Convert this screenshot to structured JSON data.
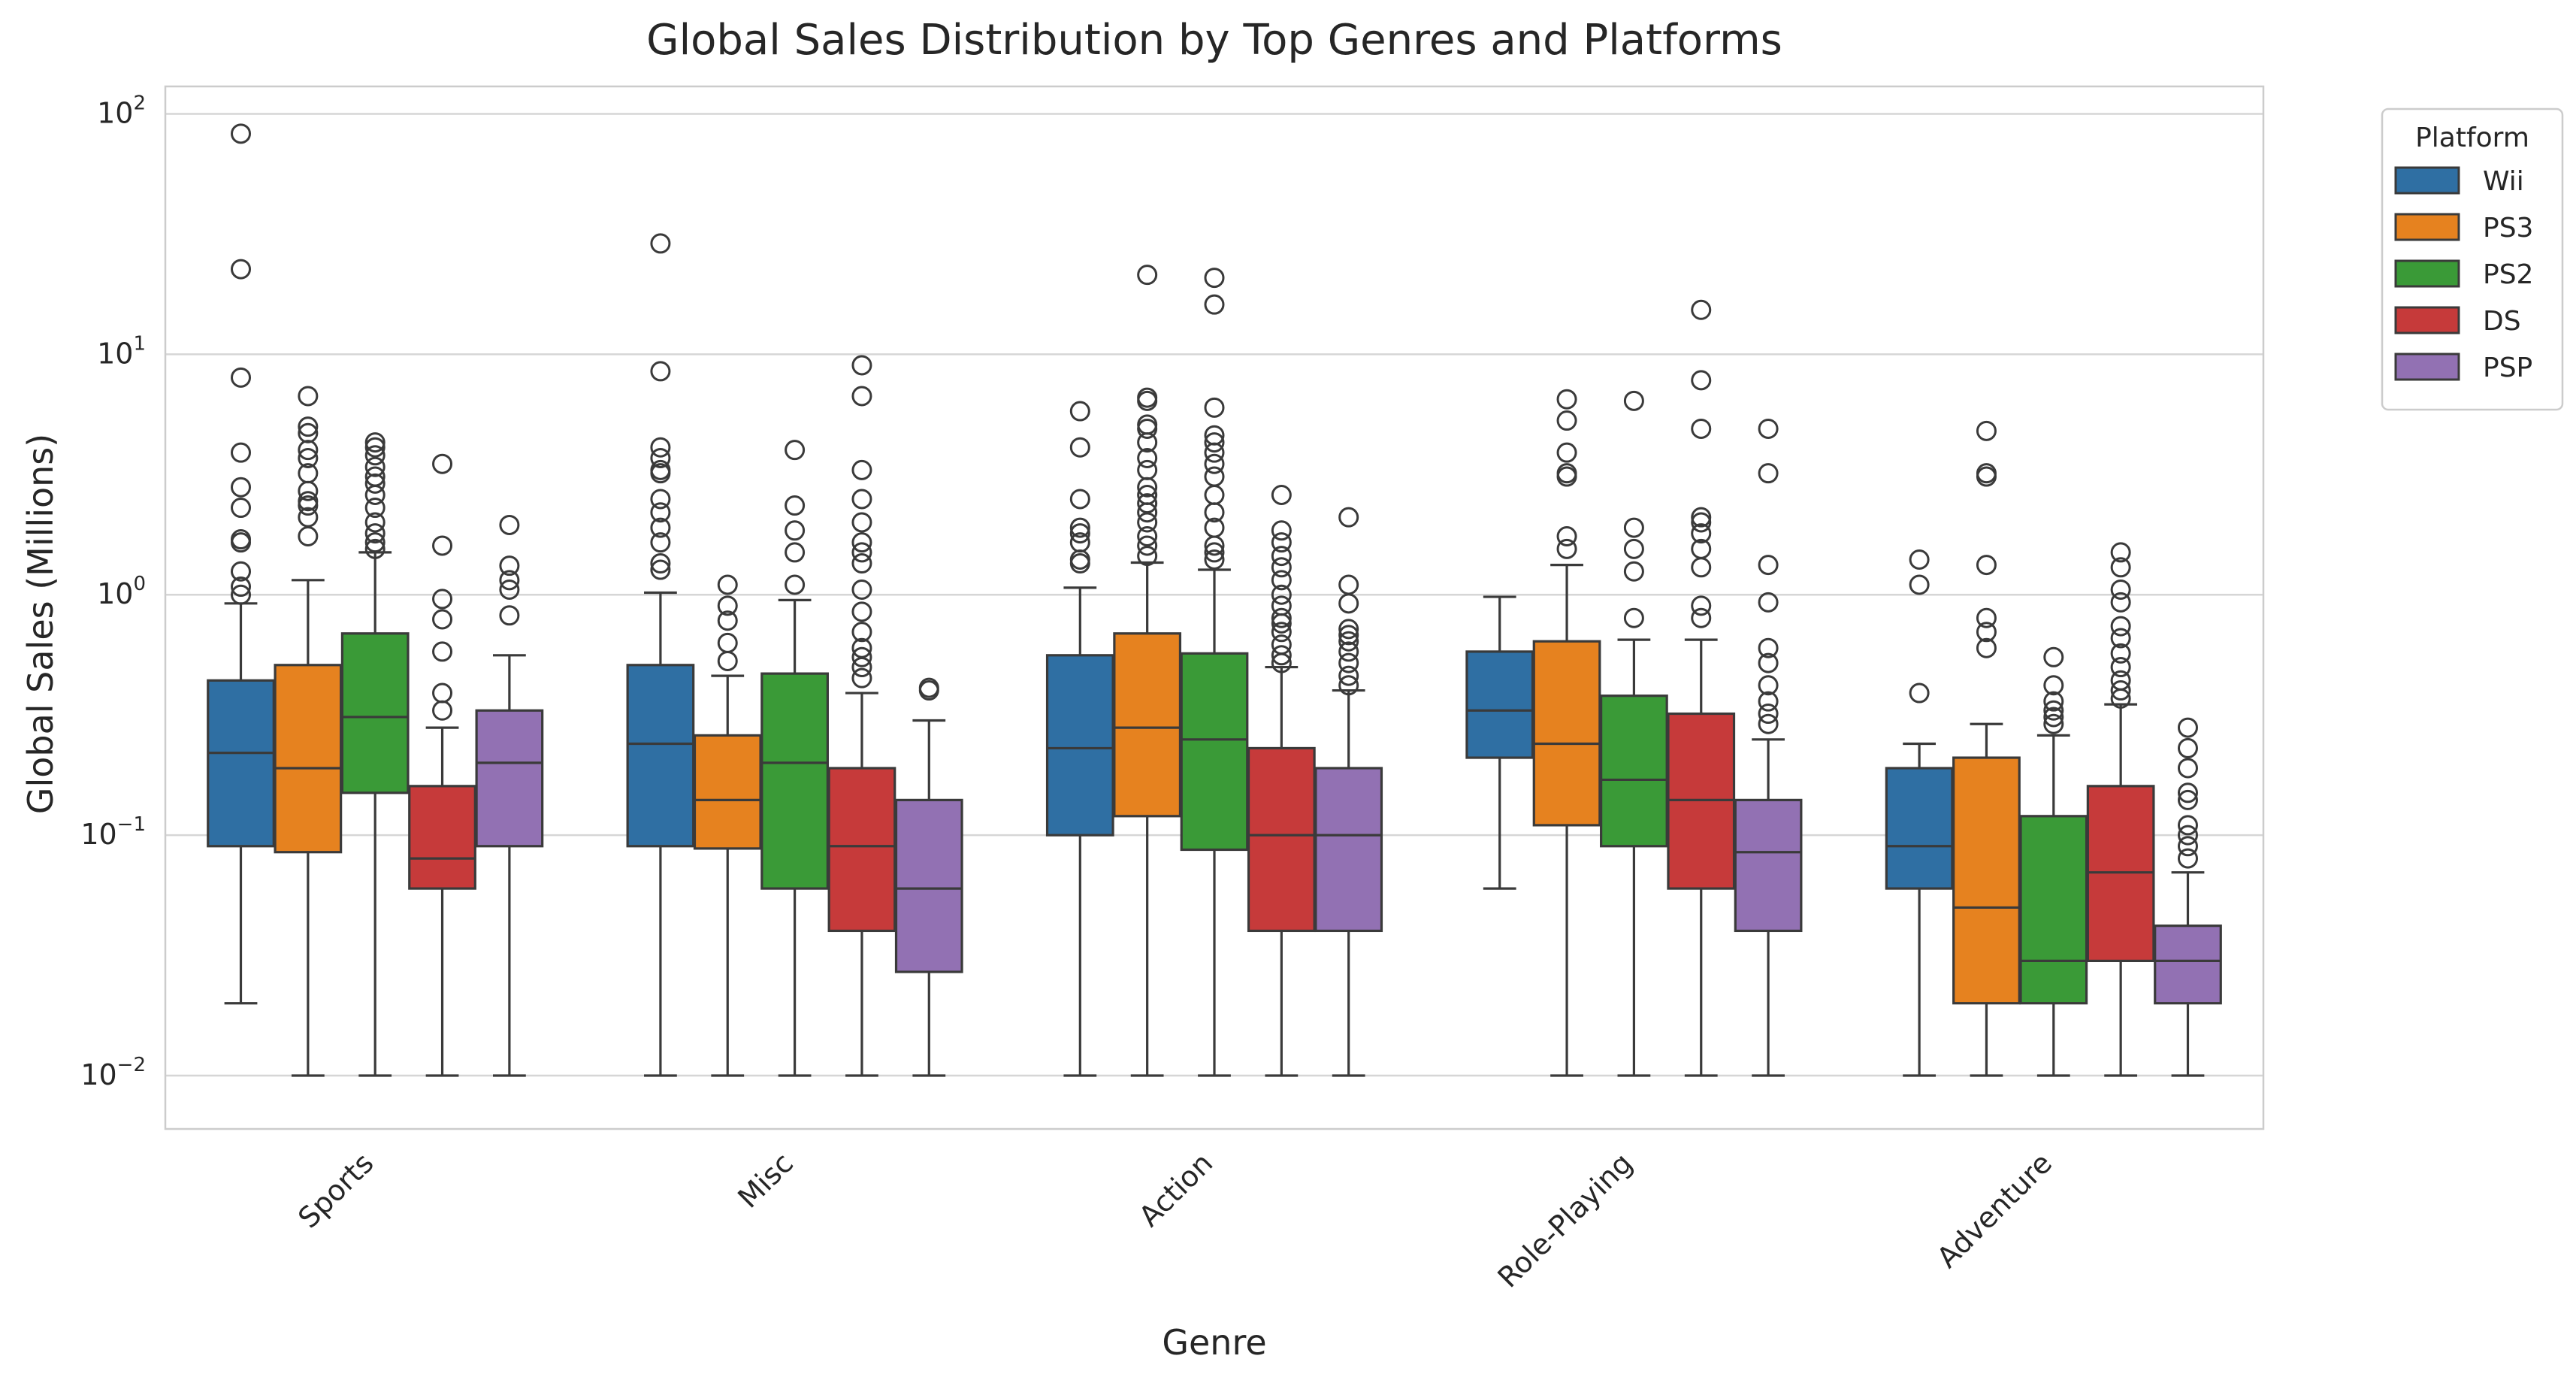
{
  "chart_data": {
    "type": "box",
    "title": "Global Sales Distribution by Top Genres and Platforms",
    "xlabel": "Genre",
    "ylabel": "Global Sales (Millions)",
    "yscale": "log",
    "ylim": [
      0.006,
      130
    ],
    "yticks": [
      {
        "value": 0.01,
        "base": "10",
        "exp": "−2"
      },
      {
        "value": 0.1,
        "base": "10",
        "exp": "−1"
      },
      {
        "value": 1,
        "base": "10",
        "exp": "0"
      },
      {
        "value": 10,
        "base": "10",
        "exp": "1"
      },
      {
        "value": 100,
        "base": "10",
        "exp": "2"
      }
    ],
    "grid": true,
    "legend_title": "Platform",
    "legend_position": "outside-right-top",
    "categories": [
      "Sports",
      "Misc",
      "Action",
      "Role-Playing",
      "Adventure"
    ],
    "platforms": [
      {
        "name": "Wii",
        "color": "#2f6fa3"
      },
      {
        "name": "PS3",
        "color": "#e6821f"
      },
      {
        "name": "PS2",
        "color": "#3a9a37"
      },
      {
        "name": "DS",
        "color": "#c63a3a"
      },
      {
        "name": "PSP",
        "color": "#9271b3"
      }
    ],
    "boxes": {
      "Sports": [
        {
          "whislo": 0.02,
          "q1": 0.09,
          "med": 0.22,
          "q3": 0.44,
          "whishi": 0.92,
          "fliers": [
            1.0,
            1.08,
            1.25,
            1.65,
            1.7,
            2.3,
            2.8,
            3.9,
            8.0,
            22.6,
            82.7
          ]
        },
        {
          "whislo": 0.01,
          "q1": 0.085,
          "med": 0.19,
          "q3": 0.51,
          "whishi": 1.15,
          "fliers": [
            1.75,
            2.1,
            2.35,
            2.45,
            2.7,
            3.2,
            3.7,
            4.0,
            4.7,
            5.0,
            6.7
          ]
        },
        {
          "whislo": 0.01,
          "q1": 0.15,
          "med": 0.31,
          "q3": 0.69,
          "whishi": 1.5,
          "fliers": [
            1.55,
            1.65,
            1.8,
            2.0,
            2.3,
            2.6,
            2.9,
            3.1,
            3.4,
            3.8,
            4.1,
            4.3
          ]
        },
        {
          "whislo": 0.01,
          "q1": 0.06,
          "med": 0.08,
          "q3": 0.16,
          "whishi": 0.28,
          "fliers": [
            0.33,
            0.39,
            0.58,
            0.79,
            0.96,
            1.6,
            3.5
          ]
        },
        {
          "whislo": 0.01,
          "q1": 0.09,
          "med": 0.2,
          "q3": 0.33,
          "whishi": 0.56,
          "fliers": [
            0.82,
            1.05,
            1.15,
            1.32,
            1.95
          ]
        }
      ],
      "Misc": [
        {
          "whislo": 0.01,
          "q1": 0.09,
          "med": 0.24,
          "q3": 0.51,
          "whishi": 1.02,
          "fliers": [
            1.27,
            1.35,
            1.65,
            1.9,
            2.2,
            2.5,
            3.2,
            3.3,
            3.7,
            4.1,
            8.5,
            28.9
          ]
        },
        {
          "whislo": 0.01,
          "q1": 0.088,
          "med": 0.14,
          "q3": 0.26,
          "whishi": 0.46,
          "fliers": [
            0.53,
            0.63,
            0.78,
            0.9,
            1.1
          ]
        },
        {
          "whislo": 0.01,
          "q1": 0.06,
          "med": 0.2,
          "q3": 0.47,
          "whishi": 0.95,
          "fliers": [
            1.1,
            1.5,
            1.85,
            2.35,
            4.0
          ]
        },
        {
          "whislo": 0.01,
          "q1": 0.04,
          "med": 0.09,
          "q3": 0.19,
          "whishi": 0.39,
          "fliers": [
            0.45,
            0.5,
            0.55,
            0.6,
            0.7,
            0.85,
            1.05,
            1.35,
            1.5,
            1.65,
            2.0,
            2.5,
            3.3,
            6.7,
            9.0
          ]
        },
        {
          "whislo": 0.01,
          "q1": 0.027,
          "med": 0.06,
          "q3": 0.14,
          "whishi": 0.3,
          "fliers": [
            0.4,
            0.41
          ]
        }
      ],
      "Action": [
        {
          "whislo": 0.01,
          "q1": 0.1,
          "med": 0.23,
          "q3": 0.56,
          "whishi": 1.07,
          "fliers": [
            1.35,
            1.4,
            1.65,
            1.8,
            1.9,
            2.5,
            4.1,
            5.8
          ]
        },
        {
          "whislo": 0.01,
          "q1": 0.12,
          "med": 0.28,
          "q3": 0.69,
          "whishi": 1.36,
          "fliers": [
            1.45,
            1.6,
            1.75,
            2.0,
            2.2,
            2.4,
            2.6,
            2.8,
            3.3,
            3.7,
            4.3,
            4.9,
            5.1,
            6.4,
            6.6,
            21.4
          ]
        },
        {
          "whislo": 0.01,
          "q1": 0.087,
          "med": 0.25,
          "q3": 0.57,
          "whishi": 1.27,
          "fliers": [
            1.4,
            1.5,
            1.6,
            1.9,
            2.2,
            2.6,
            3.1,
            3.5,
            3.9,
            4.3,
            4.6,
            6.0,
            16.1,
            20.8
          ]
        },
        {
          "whislo": 0.01,
          "q1": 0.04,
          "med": 0.1,
          "q3": 0.23,
          "whishi": 0.5,
          "fliers": [
            0.52,
            0.56,
            0.62,
            0.7,
            0.76,
            0.8,
            0.9,
            1.0,
            1.15,
            1.3,
            1.45,
            1.65,
            1.85,
            2.6
          ]
        },
        {
          "whislo": 0.01,
          "q1": 0.04,
          "med": 0.1,
          "q3": 0.19,
          "whishi": 0.4,
          "fliers": [
            0.42,
            0.46,
            0.52,
            0.58,
            0.64,
            0.68,
            0.72,
            0.92,
            1.1,
            2.1
          ]
        }
      ],
      "Role-Playing": [
        {
          "whislo": 0.06,
          "q1": 0.21,
          "med": 0.33,
          "q3": 0.58,
          "whishi": 0.98,
          "fliers": []
        },
        {
          "whislo": 0.01,
          "q1": 0.11,
          "med": 0.24,
          "q3": 0.64,
          "whishi": 1.33,
          "fliers": [
            1.55,
            1.75,
            3.1,
            3.2,
            3.9,
            5.3,
            6.5
          ]
        },
        {
          "whislo": 0.01,
          "q1": 0.09,
          "med": 0.17,
          "q3": 0.38,
          "whishi": 0.65,
          "fliers": [
            0.8,
            1.25,
            1.55,
            1.9,
            6.4
          ]
        },
        {
          "whislo": 0.01,
          "q1": 0.06,
          "med": 0.14,
          "q3": 0.32,
          "whishi": 0.65,
          "fliers": [
            0.8,
            0.9,
            1.3,
            1.55,
            1.8,
            2.0,
            2.1,
            4.9,
            7.8,
            15.3
          ]
        },
        {
          "whislo": 0.01,
          "q1": 0.04,
          "med": 0.085,
          "q3": 0.14,
          "whishi": 0.25,
          "fliers": [
            0.29,
            0.32,
            0.36,
            0.42,
            0.52,
            0.6,
            0.93,
            1.33,
            3.2,
            4.9
          ]
        }
      ],
      "Adventure": [
        {
          "whislo": 0.01,
          "q1": 0.06,
          "med": 0.09,
          "q3": 0.19,
          "whishi": 0.24,
          "fliers": [
            0.39,
            1.1,
            1.4
          ]
        },
        {
          "whislo": 0.01,
          "q1": 0.02,
          "med": 0.05,
          "q3": 0.21,
          "whishi": 0.29,
          "fliers": [
            0.6,
            0.7,
            0.8,
            1.33,
            3.1,
            3.2,
            4.8
          ]
        },
        {
          "whislo": 0.01,
          "q1": 0.02,
          "med": 0.03,
          "q3": 0.12,
          "whishi": 0.26,
          "fliers": [
            0.29,
            0.31,
            0.33,
            0.36,
            0.42,
            0.55
          ]
        },
        {
          "whislo": 0.01,
          "q1": 0.03,
          "med": 0.07,
          "q3": 0.16,
          "whishi": 0.35,
          "fliers": [
            0.37,
            0.4,
            0.44,
            0.5,
            0.57,
            0.66,
            0.74,
            0.93,
            1.05,
            1.3,
            1.5
          ]
        },
        {
          "whislo": 0.01,
          "q1": 0.02,
          "med": 0.03,
          "q3": 0.042,
          "whishi": 0.07,
          "fliers": [
            0.08,
            0.09,
            0.1,
            0.11,
            0.14,
            0.15,
            0.19,
            0.23,
            0.28
          ]
        }
      ]
    }
  }
}
